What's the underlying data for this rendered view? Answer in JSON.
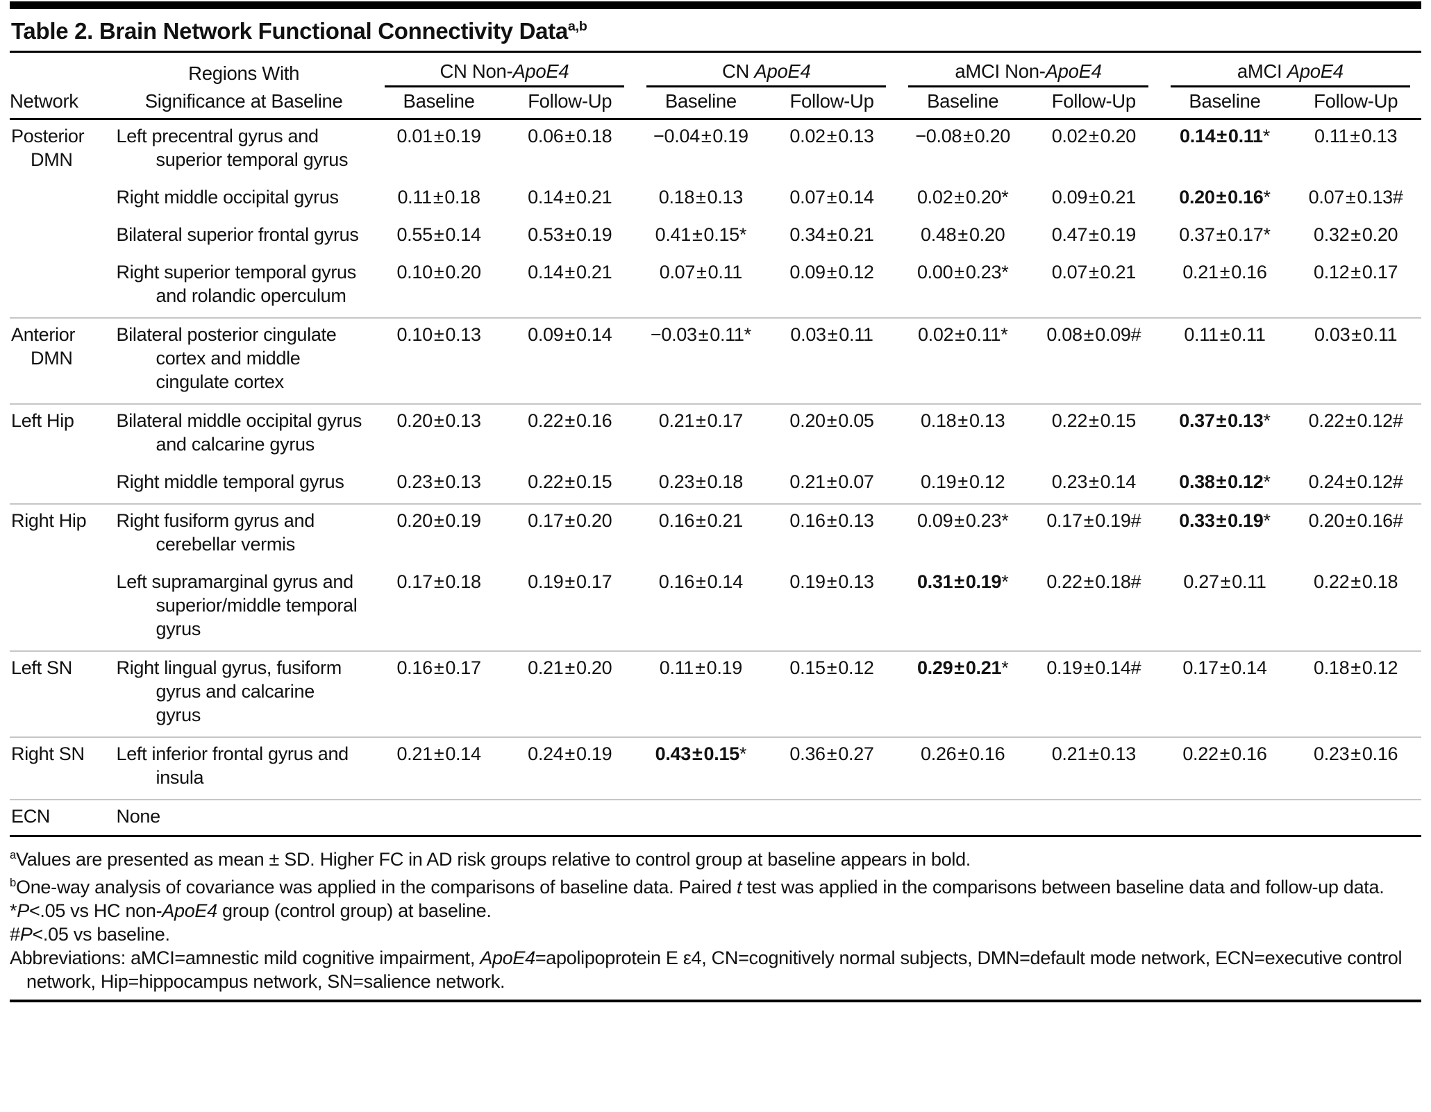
{
  "title": {
    "text": "Table 2. Brain Network Functional Connectivity Data",
    "sup": "a,b"
  },
  "table": {
    "pm_symbol": "±"
  },
  "header": {
    "network_label": "Network",
    "regions_label_line1": "Regions With",
    "regions_label_line2": "Significance at Baseline",
    "groups": [
      {
        "segments": [
          {
            "t": "CN Non-"
          },
          {
            "t": "ApoE4",
            "i": true
          }
        ]
      },
      {
        "segments": [
          {
            "t": "CN "
          },
          {
            "t": "ApoE4",
            "i": true
          }
        ]
      },
      {
        "segments": [
          {
            "t": "aMCI Non-"
          },
          {
            "t": "ApoE4",
            "i": true
          }
        ]
      },
      {
        "segments": [
          {
            "t": "aMCI "
          },
          {
            "t": "ApoE4",
            "i": true
          }
        ]
      }
    ],
    "subcols": [
      "Baseline",
      "Follow-Up"
    ]
  },
  "rows": [
    {
      "network": "Posterior DMN",
      "group_start": true,
      "region": "Left precentral gyrus and superior temporal gyrus",
      "cells": [
        {
          "m": "0.01",
          "s": "0.19"
        },
        {
          "m": "0.06",
          "s": "0.18"
        },
        {
          "m": "−0.04",
          "s": "0.19"
        },
        {
          "m": "0.02",
          "s": "0.13"
        },
        {
          "m": "−0.08",
          "s": "0.20"
        },
        {
          "m": "0.02",
          "s": "0.20"
        },
        {
          "m": "0.14",
          "s": "0.11",
          "b": true,
          "k": "*"
        },
        {
          "m": "0.11",
          "s": "0.13"
        }
      ]
    },
    {
      "network": "",
      "group_start": false,
      "region": "Right middle occipital gyrus",
      "cells": [
        {
          "m": "0.11",
          "s": "0.18"
        },
        {
          "m": "0.14",
          "s": "0.21"
        },
        {
          "m": "0.18",
          "s": "0.13"
        },
        {
          "m": "0.07",
          "s": "0.14"
        },
        {
          "m": "0.02",
          "s": "0.20",
          "k": "*"
        },
        {
          "m": "0.09",
          "s": "0.21"
        },
        {
          "m": "0.20",
          "s": "0.16",
          "b": true,
          "k": "*"
        },
        {
          "m": "0.07",
          "s": "0.13",
          "k": "#"
        }
      ]
    },
    {
      "network": "",
      "group_start": false,
      "region": "Bilateral superior frontal gyrus",
      "cells": [
        {
          "m": "0.55",
          "s": "0.14"
        },
        {
          "m": "0.53",
          "s": "0.19"
        },
        {
          "m": "0.41",
          "s": "0.15",
          "k": "*"
        },
        {
          "m": "0.34",
          "s": "0.21"
        },
        {
          "m": "0.48",
          "s": "0.20"
        },
        {
          "m": "0.47",
          "s": "0.19"
        },
        {
          "m": "0.37",
          "s": "0.17",
          "k": "*"
        },
        {
          "m": "0.32",
          "s": "0.20"
        }
      ]
    },
    {
      "network": "",
      "group_start": false,
      "region": "Right superior temporal gyrus and rolandic operculum",
      "cells": [
        {
          "m": "0.10",
          "s": "0.20"
        },
        {
          "m": "0.14",
          "s": "0.21"
        },
        {
          "m": "0.07",
          "s": "0.11"
        },
        {
          "m": "0.09",
          "s": "0.12"
        },
        {
          "m": "0.00",
          "s": "0.23",
          "k": "*"
        },
        {
          "m": "0.07",
          "s": "0.21"
        },
        {
          "m": "0.21",
          "s": "0.16"
        },
        {
          "m": "0.12",
          "s": "0.17"
        }
      ]
    },
    {
      "network": "Anterior DMN",
      "group_start": true,
      "region": "Bilateral posterior cingulate cortex and middle cingulate cortex",
      "cells": [
        {
          "m": "0.10",
          "s": "0.13"
        },
        {
          "m": "0.09",
          "s": "0.14"
        },
        {
          "m": "−0.03",
          "s": "0.11",
          "k": "*"
        },
        {
          "m": "0.03",
          "s": "0.11"
        },
        {
          "m": "0.02",
          "s": "0.11",
          "k": "*"
        },
        {
          "m": "0.08",
          "s": "0.09",
          "k": "#"
        },
        {
          "m": "0.11",
          "s": "0.11"
        },
        {
          "m": "0.03",
          "s": "0.11"
        }
      ]
    },
    {
      "network": "Left Hip",
      "group_start": true,
      "region": "Bilateral middle occipital gyrus and calcarine gyrus",
      "cells": [
        {
          "m": "0.20",
          "s": "0.13"
        },
        {
          "m": "0.22",
          "s": "0.16"
        },
        {
          "m": "0.21",
          "s": "0.17"
        },
        {
          "m": "0.20",
          "s": "0.05"
        },
        {
          "m": "0.18",
          "s": "0.13"
        },
        {
          "m": "0.22",
          "s": "0.15"
        },
        {
          "m": "0.37",
          "s": "0.13",
          "b": true,
          "k": "*"
        },
        {
          "m": "0.22",
          "s": "0.12",
          "k": "#"
        }
      ]
    },
    {
      "network": "",
      "group_start": false,
      "region": "Right middle temporal gyrus",
      "cells": [
        {
          "m": "0.23",
          "s": "0.13"
        },
        {
          "m": "0.22",
          "s": "0.15"
        },
        {
          "m": "0.23",
          "s": "0.18"
        },
        {
          "m": "0.21",
          "s": "0.07"
        },
        {
          "m": "0.19",
          "s": "0.12"
        },
        {
          "m": "0.23",
          "s": "0.14"
        },
        {
          "m": "0.38",
          "s": "0.12",
          "b": true,
          "k": "*"
        },
        {
          "m": "0.24",
          "s": "0.12",
          "k": "#"
        }
      ]
    },
    {
      "network": "Right Hip",
      "group_start": true,
      "region": "Right fusiform gyrus and cerebellar vermis",
      "cells": [
        {
          "m": "0.20",
          "s": "0.19"
        },
        {
          "m": "0.17",
          "s": "0.20"
        },
        {
          "m": "0.16",
          "s": "0.21"
        },
        {
          "m": "0.16",
          "s": "0.13"
        },
        {
          "m": "0.09",
          "s": "0.23",
          "k": "*"
        },
        {
          "m": "0.17",
          "s": "0.19",
          "k": "#"
        },
        {
          "m": "0.33",
          "s": "0.19",
          "b": true,
          "k": "*"
        },
        {
          "m": "0.20",
          "s": "0.16",
          "k": "#"
        }
      ]
    },
    {
      "network": "",
      "group_start": false,
      "region": "Left supramarginal gyrus and superior/middle temporal gyrus",
      "cells": [
        {
          "m": "0.17",
          "s": "0.18"
        },
        {
          "m": "0.19",
          "s": "0.17"
        },
        {
          "m": "0.16",
          "s": "0.14"
        },
        {
          "m": "0.19",
          "s": "0.13"
        },
        {
          "m": "0.31",
          "s": "0.19",
          "b": true,
          "k": "*"
        },
        {
          "m": "0.22",
          "s": "0.18",
          "k": "#"
        },
        {
          "m": "0.27",
          "s": "0.11"
        },
        {
          "m": "0.22",
          "s": "0.18"
        }
      ]
    },
    {
      "network": "Left SN",
      "group_start": true,
      "region": "Right lingual gyrus, fusiform gyrus and calcarine gyrus",
      "cells": [
        {
          "m": "0.16",
          "s": "0.17"
        },
        {
          "m": "0.21",
          "s": "0.20"
        },
        {
          "m": "0.11",
          "s": "0.19"
        },
        {
          "m": "0.15",
          "s": "0.12"
        },
        {
          "m": "0.29",
          "s": "0.21",
          "b": true,
          "k": "*"
        },
        {
          "m": "0.19",
          "s": "0.14",
          "k": "#"
        },
        {
          "m": "0.17",
          "s": "0.14"
        },
        {
          "m": "0.18",
          "s": "0.12"
        }
      ]
    },
    {
      "network": "Right SN",
      "group_start": true,
      "region": "Left inferior frontal gyrus and insula",
      "cells": [
        {
          "m": "0.21",
          "s": "0.14"
        },
        {
          "m": "0.24",
          "s": "0.19"
        },
        {
          "m": "0.43",
          "s": "0.15",
          "b": true,
          "k": "*"
        },
        {
          "m": "0.36",
          "s": "0.27"
        },
        {
          "m": "0.26",
          "s": "0.16"
        },
        {
          "m": "0.21",
          "s": "0.13"
        },
        {
          "m": "0.22",
          "s": "0.16"
        },
        {
          "m": "0.23",
          "s": "0.16"
        }
      ]
    },
    {
      "network": "ECN",
      "group_start": true,
      "region": "None",
      "cells": [
        null,
        null,
        null,
        null,
        null,
        null,
        null,
        null
      ]
    }
  ],
  "footnotes": [
    {
      "segments": [
        {
          "t": "a",
          "sup": true
        },
        {
          "t": "Values are presented as mean ± SD. Higher FC in AD risk groups relative to control group at baseline appears in bold."
        }
      ]
    },
    {
      "segments": [
        {
          "t": "b",
          "sup": true
        },
        {
          "t": "One-way analysis of covariance was applied in the comparisons of baseline data. Paired "
        },
        {
          "t": "t",
          "i": true
        },
        {
          "t": " test was applied in the comparisons between baseline data and follow-up data."
        }
      ]
    },
    {
      "segments": [
        {
          "t": "*"
        },
        {
          "t": "P",
          "i": true
        },
        {
          "t": "<.05 vs HC non-"
        },
        {
          "t": "ApoE4",
          "i": true
        },
        {
          "t": " group (control group) at baseline."
        }
      ]
    },
    {
      "segments": [
        {
          "t": "#"
        },
        {
          "t": "P",
          "i": true
        },
        {
          "t": "<.05 vs baseline."
        }
      ]
    },
    {
      "segments": [
        {
          "t": "Abbreviations: aMCI=amnestic mild cognitive impairment, "
        },
        {
          "t": "ApoE4",
          "i": true
        },
        {
          "t": "=apolipoprotein E ε4, CN=cognitively normal subjects, DMN=default mode network, ECN=executive control network, Hip=hippocampus network, SN=salience network."
        }
      ]
    }
  ]
}
